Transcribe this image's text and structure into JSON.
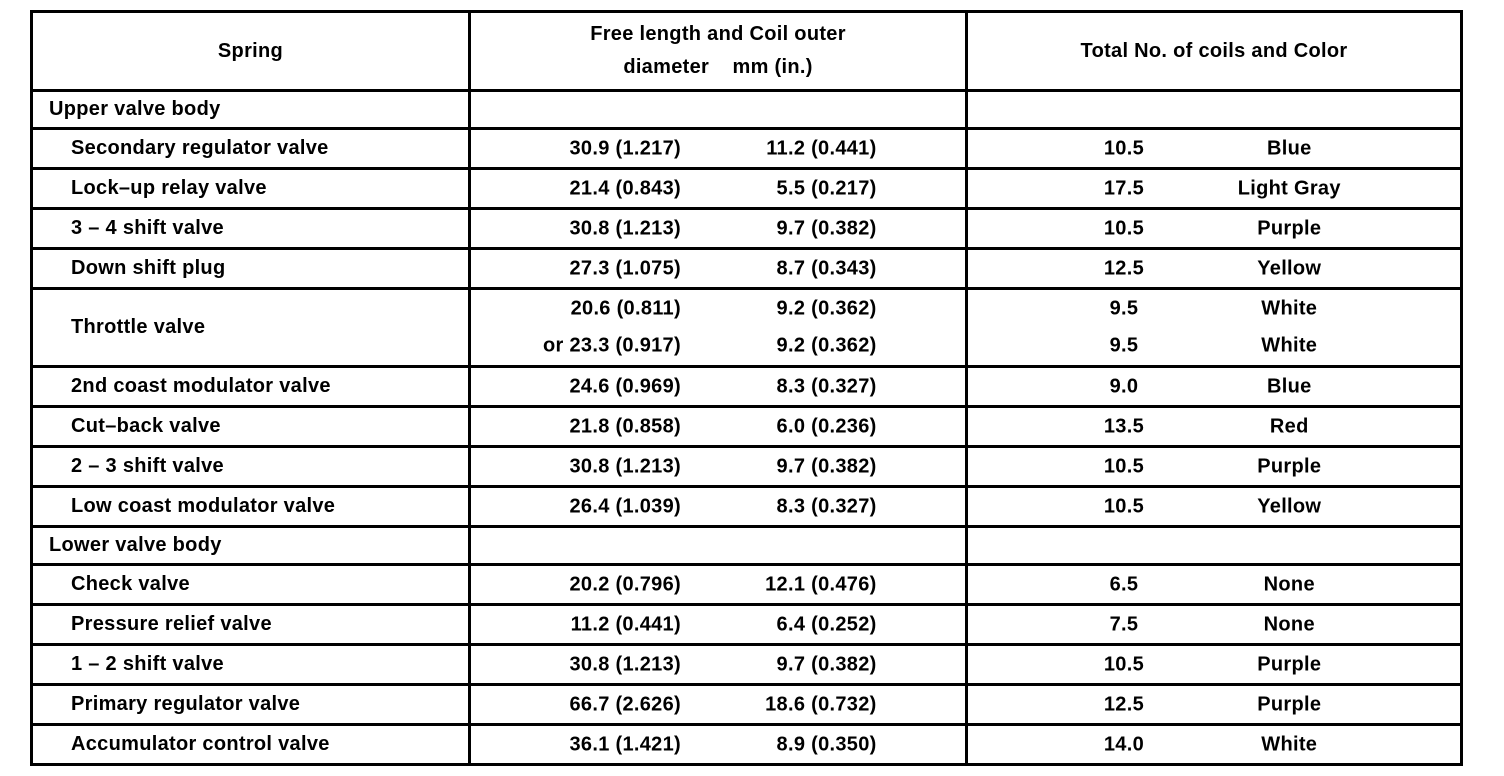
{
  "style": {
    "ink": "#000000",
    "background": "#ffffff"
  },
  "table": {
    "headers": {
      "col1": "Spring",
      "col2_line1": "Free length and Coil outer",
      "col2_line2": "diameter    mm (in.)",
      "col3": "Total No. of coils and Color"
    },
    "rows": [
      {
        "type": "section",
        "label": "Upper valve body"
      },
      {
        "type": "item",
        "label": "Secondary regulator valve",
        "lines": [
          {
            "free_length": "30.9 (1.217)",
            "coil_od": "11.2 (0.441)",
            "coils": "10.5",
            "color": "Blue"
          }
        ]
      },
      {
        "type": "item",
        "label": "Lock–up relay valve",
        "lines": [
          {
            "free_length": "21.4 (0.843)",
            "coil_od": "5.5 (0.217)",
            "coils": "17.5",
            "color": "Light Gray"
          }
        ]
      },
      {
        "type": "item",
        "label": "3 – 4 shift valve",
        "lines": [
          {
            "free_length": "30.8 (1.213)",
            "coil_od": "9.7 (0.382)",
            "coils": "10.5",
            "color": "Purple"
          }
        ]
      },
      {
        "type": "item",
        "label": "Down shift plug",
        "lines": [
          {
            "free_length": "27.3 (1.075)",
            "coil_od": "8.7 (0.343)",
            "coils": "12.5",
            "color": "Yellow"
          }
        ]
      },
      {
        "type": "item",
        "label": "Throttle valve",
        "lines": [
          {
            "free_length": "20.6 (0.811)",
            "coil_od": "9.2 (0.362)",
            "coils": "9.5",
            "color": "White"
          },
          {
            "free_length": "or 23.3 (0.917)",
            "coil_od": "9.2 (0.362)",
            "coils": "9.5",
            "color": "White"
          }
        ]
      },
      {
        "type": "item",
        "label": "2nd coast modulator valve",
        "lines": [
          {
            "free_length": "24.6 (0.969)",
            "coil_od": "8.3 (0.327)",
            "coils": "9.0",
            "color": "Blue"
          }
        ]
      },
      {
        "type": "item",
        "label": "Cut–back valve",
        "lines": [
          {
            "free_length": "21.8 (0.858)",
            "coil_od": "6.0 (0.236)",
            "coils": "13.5",
            "color": "Red"
          }
        ]
      },
      {
        "type": "item",
        "label": "2 – 3 shift valve",
        "lines": [
          {
            "free_length": "30.8 (1.213)",
            "coil_od": "9.7 (0.382)",
            "coils": "10.5",
            "color": "Purple"
          }
        ]
      },
      {
        "type": "item",
        "label": "Low coast modulator valve",
        "lines": [
          {
            "free_length": "26.4 (1.039)",
            "coil_od": "8.3 (0.327)",
            "coils": "10.5",
            "color": "Yellow"
          }
        ]
      },
      {
        "type": "section",
        "label": "Lower valve body"
      },
      {
        "type": "item",
        "label": "Check valve",
        "lines": [
          {
            "free_length": "20.2 (0.796)",
            "coil_od": "12.1 (0.476)",
            "coils": "6.5",
            "color": "None"
          }
        ]
      },
      {
        "type": "item",
        "label": "Pressure relief valve",
        "lines": [
          {
            "free_length": "11.2 (0.441)",
            "coil_od": "6.4 (0.252)",
            "coils": "7.5",
            "color": "None"
          }
        ]
      },
      {
        "type": "item",
        "label": "1 – 2 shift valve",
        "lines": [
          {
            "free_length": "30.8 (1.213)",
            "coil_od": "9.7 (0.382)",
            "coils": "10.5",
            "color": "Purple"
          }
        ]
      },
      {
        "type": "item",
        "label": "Primary regulator valve",
        "lines": [
          {
            "free_length": "66.7 (2.626)",
            "coil_od": "18.6 (0.732)",
            "coils": "12.5",
            "color": "Purple"
          }
        ]
      },
      {
        "type": "item",
        "label": "Accumulator control valve",
        "lines": [
          {
            "free_length": "36.1 (1.421)",
            "coil_od": "8.9 (0.350)",
            "coils": "14.0",
            "color": "White"
          }
        ]
      }
    ]
  }
}
